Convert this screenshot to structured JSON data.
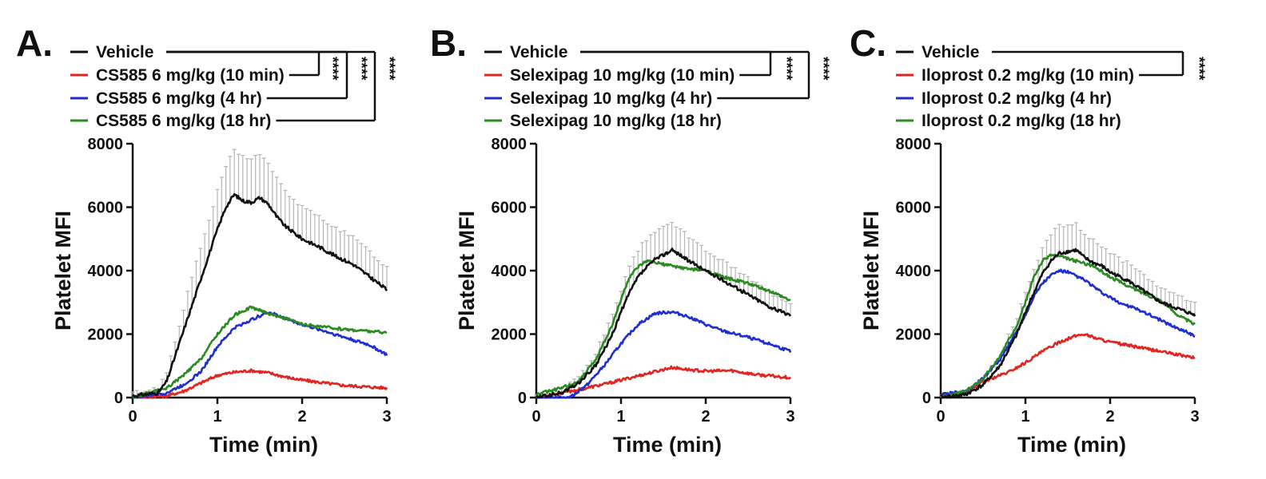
{
  "chart_data": [
    {
      "type": "line",
      "panel_label": "A.",
      "xlabel": "Time (min)",
      "ylabel": "Platelet MFI",
      "xlim": [
        0,
        3
      ],
      "ylim": [
        0,
        8000
      ],
      "x_ticks": [
        "0",
        "1",
        "2",
        "3"
      ],
      "y_ticks": [
        "0",
        "2000",
        "4000",
        "6000",
        "8000"
      ],
      "legend_position": "top",
      "series": [
        {
          "name": "Vehicle",
          "color": "#111111",
          "error_bars": true,
          "x": [
            0,
            0.3,
            0.4,
            0.5,
            0.6,
            0.7,
            0.8,
            0.9,
            1.0,
            1.1,
            1.2,
            1.3,
            1.4,
            1.5,
            1.6,
            1.7,
            1.8,
            1.9,
            2.0,
            2.2,
            2.4,
            2.6,
            2.8,
            2.9,
            3.0
          ],
          "y": [
            50,
            150,
            500,
            1300,
            2100,
            2900,
            3700,
            4500,
            5300,
            6000,
            6400,
            6200,
            6150,
            6300,
            6100,
            5700,
            5400,
            5200,
            5000,
            4750,
            4450,
            4200,
            3800,
            3600,
            3400
          ],
          "err": [
            100,
            150,
            300,
            500,
            700,
            900,
            1000,
            1100,
            1200,
            1300,
            1400,
            1400,
            1400,
            1350,
            1300,
            1200,
            1100,
            1050,
            1000,
            950,
            900,
            850,
            800,
            750,
            700
          ]
        },
        {
          "name": "CS585 6 mg/kg (10 min)",
          "color": "#e32521",
          "x": [
            0,
            0.4,
            0.6,
            0.8,
            1.0,
            1.2,
            1.4,
            1.6,
            1.8,
            2.0,
            2.5,
            3.0
          ],
          "y": [
            0,
            50,
            200,
            450,
            700,
            800,
            850,
            780,
            650,
            550,
            380,
            300
          ]
        },
        {
          "name": "CS585 6 mg/kg (4 hr)",
          "color": "#1f2ed1",
          "x": [
            0,
            0.4,
            0.6,
            0.8,
            1.0,
            1.2,
            1.4,
            1.6,
            1.8,
            2.0,
            2.2,
            2.5,
            2.8,
            3.0
          ],
          "y": [
            0,
            150,
            400,
            800,
            1600,
            2200,
            2450,
            2700,
            2500,
            2300,
            2150,
            1900,
            1650,
            1350
          ]
        },
        {
          "name": "CS585 6 mg/kg (18 hr)",
          "color": "#2b8a22",
          "x": [
            0,
            0.4,
            0.6,
            0.8,
            1.0,
            1.2,
            1.4,
            1.6,
            1.8,
            2.0,
            2.5,
            3.0
          ],
          "y": [
            0,
            300,
            700,
            1200,
            2000,
            2600,
            2850,
            2650,
            2500,
            2300,
            2150,
            2050
          ]
        }
      ],
      "significance": [
        {
          "comparison": [
            "Vehicle",
            "CS585 6 mg/kg (10 min)"
          ],
          "label": "****"
        },
        {
          "comparison": [
            "Vehicle",
            "CS585 6 mg/kg (4 hr)"
          ],
          "label": "****"
        },
        {
          "comparison": [
            "Vehicle",
            "CS585 6 mg/kg (18 hr)"
          ],
          "label": "****"
        }
      ]
    },
    {
      "type": "line",
      "panel_label": "B.",
      "xlabel": "Time (min)",
      "ylabel": "Platelet MFI",
      "xlim": [
        0,
        3
      ],
      "ylim": [
        0,
        8000
      ],
      "x_ticks": [
        "0",
        "1",
        "2",
        "3"
      ],
      "y_ticks": [
        "0",
        "2000",
        "4000",
        "6000",
        "8000"
      ],
      "legend_position": "top",
      "series": [
        {
          "name": "Vehicle",
          "color": "#111111",
          "error_bars": true,
          "x": [
            0,
            0.3,
            0.5,
            0.7,
            0.9,
            1.0,
            1.1,
            1.2,
            1.3,
            1.4,
            1.5,
            1.6,
            1.7,
            1.8,
            1.9,
            2.0,
            2.2,
            2.4,
            2.6,
            2.8,
            3.0
          ],
          "y": [
            0,
            150,
            450,
            1000,
            2000,
            2700,
            3300,
            3800,
            4100,
            4350,
            4500,
            4650,
            4500,
            4300,
            4150,
            4000,
            3700,
            3400,
            3100,
            2800,
            2600
          ],
          "err": [
            50,
            100,
            200,
            400,
            600,
            700,
            800,
            850,
            900,
            900,
            900,
            850,
            800,
            750,
            700,
            650,
            600,
            550,
            500,
            450,
            400
          ]
        },
        {
          "name": "Selexipag 10 mg/kg (10 min)",
          "color": "#e32521",
          "x": [
            0,
            0.3,
            0.5,
            0.8,
            1.0,
            1.3,
            1.6,
            1.8,
            2.0,
            2.3,
            2.6,
            3.0
          ],
          "y": [
            0,
            150,
            250,
            420,
            550,
            750,
            950,
            880,
            830,
            850,
            720,
            630
          ]
        },
        {
          "name": "Selexipag 10 mg/kg (4 hr)",
          "color": "#1f2ed1",
          "x": [
            0,
            0.4,
            0.6,
            0.8,
            1.0,
            1.2,
            1.4,
            1.6,
            1.8,
            2.0,
            2.2,
            2.5,
            2.8,
            3.0
          ],
          "y": [
            0,
            0,
            400,
            1000,
            1700,
            2300,
            2650,
            2700,
            2550,
            2300,
            2100,
            1900,
            1650,
            1450
          ]
        },
        {
          "name": "Selexipag 10 mg/kg (18 hr)",
          "color": "#2b8a22",
          "x": [
            0,
            0.3,
            0.5,
            0.7,
            0.9,
            1.0,
            1.1,
            1.2,
            1.3,
            1.4,
            1.6,
            1.8,
            2.0,
            2.2,
            2.5,
            2.8,
            3.0
          ],
          "y": [
            100,
            300,
            500,
            1200,
            2300,
            3100,
            3800,
            4100,
            4300,
            4250,
            4150,
            4050,
            4000,
            3800,
            3600,
            3300,
            3050
          ]
        }
      ],
      "significance": [
        {
          "comparison": [
            "Vehicle",
            "Selexipag 10 mg/kg (10 min)"
          ],
          "label": "****"
        },
        {
          "comparison": [
            "Vehicle",
            "Selexipag 10 mg/kg (4 hr)"
          ],
          "label": "****"
        }
      ]
    },
    {
      "type": "line",
      "panel_label": "C.",
      "xlabel": "Time (min)",
      "ylabel": "Platelet MFI",
      "xlim": [
        0,
        3
      ],
      "ylim": [
        0,
        8000
      ],
      "x_ticks": [
        "0",
        "1",
        "2",
        "3"
      ],
      "y_ticks": [
        "0",
        "2000",
        "4000",
        "6000",
        "8000"
      ],
      "legend_position": "top",
      "series": [
        {
          "name": "Vehicle",
          "color": "#111111",
          "error_bars": true,
          "x": [
            0,
            0.3,
            0.5,
            0.7,
            0.9,
            1.0,
            1.1,
            1.2,
            1.3,
            1.4,
            1.5,
            1.6,
            1.7,
            1.8,
            1.9,
            2.0,
            2.2,
            2.4,
            2.6,
            2.8,
            3.0
          ],
          "y": [
            0,
            100,
            400,
            1000,
            2000,
            2700,
            3300,
            3900,
            4300,
            4550,
            4600,
            4650,
            4400,
            4250,
            4150,
            3950,
            3700,
            3350,
            3000,
            2800,
            2600
          ],
          "err": [
            50,
            100,
            200,
            350,
            550,
            650,
            750,
            800,
            850,
            850,
            850,
            800,
            750,
            700,
            650,
            600,
            550,
            500,
            450,
            420,
            400
          ]
        },
        {
          "name": "Iloprost 0.2 mg/kg (10 min)",
          "color": "#e32521",
          "x": [
            0,
            0.3,
            0.5,
            0.8,
            1.0,
            1.2,
            1.4,
            1.6,
            1.7,
            1.8,
            2.0,
            2.3,
            2.6,
            3.0
          ],
          "y": [
            100,
            150,
            500,
            800,
            1100,
            1450,
            1750,
            1950,
            2000,
            1900,
            1750,
            1600,
            1450,
            1250
          ]
        },
        {
          "name": "Iloprost 0.2 mg/kg (4 hr)",
          "color": "#1f2ed1",
          "x": [
            0,
            0.3,
            0.5,
            0.7,
            0.9,
            1.0,
            1.1,
            1.2,
            1.3,
            1.4,
            1.5,
            1.7,
            1.9,
            2.1,
            2.4,
            2.7,
            3.0
          ],
          "y": [
            100,
            200,
            600,
            1200,
            2100,
            2600,
            3200,
            3600,
            3850,
            4000,
            3950,
            3700,
            3300,
            3000,
            2700,
            2300,
            1950
          ]
        },
        {
          "name": "Iloprost 0.2 mg/kg (18 hr)",
          "color": "#2b8a22",
          "x": [
            0,
            0.3,
            0.5,
            0.7,
            0.9,
            1.0,
            1.1,
            1.2,
            1.3,
            1.4,
            1.6,
            1.8,
            2.0,
            2.3,
            2.6,
            2.8,
            3.0
          ],
          "y": [
            0,
            200,
            600,
            1300,
            2300,
            3000,
            3800,
            4300,
            4500,
            4450,
            4300,
            4150,
            3800,
            3400,
            3050,
            2600,
            2300
          ]
        }
      ],
      "significance": [
        {
          "comparison": [
            "Vehicle",
            "Iloprost 0.2 mg/kg (10 min)"
          ],
          "label": "****"
        }
      ]
    }
  ]
}
